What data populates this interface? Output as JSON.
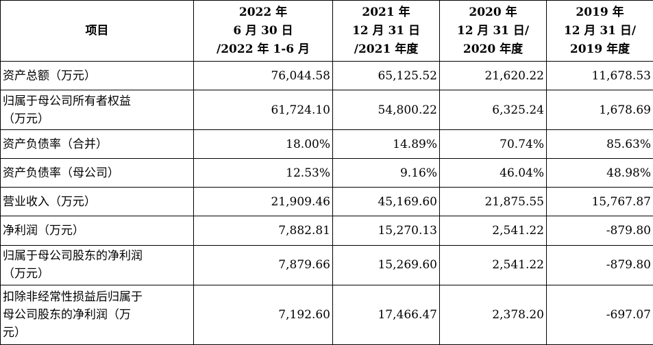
{
  "headers": {
    "item": "项目",
    "col1": [
      "2022 年",
      "6 月 30 日",
      "/2022 年 1-6 月"
    ],
    "col2": [
      "2021 年",
      "12 月 31 日",
      "/2021 年度"
    ],
    "col3": [
      "2020 年",
      "12 月 31 日/",
      "2020 年度"
    ],
    "col4": [
      "2019 年",
      "12 月 31 日/",
      "2019 年度"
    ]
  },
  "rows": [
    {
      "label": [
        "资产总额（万元）"
      ],
      "values": [
        "76,044.58",
        "65,125.52",
        "21,620.22",
        "11,678.53"
      ]
    },
    {
      "label": [
        "归属于母公司所有者权益",
        "（万元）"
      ],
      "values": [
        "61,724.10",
        "54,800.22",
        "6,325.24",
        "1,678.69"
      ]
    },
    {
      "label": [
        "资产负债率（合并）"
      ],
      "values": [
        "18.00%",
        "14.89%",
        "70.74%",
        "85.63%"
      ]
    },
    {
      "label": [
        "资产负债率（母公司）"
      ],
      "values": [
        "12.53%",
        "9.16%",
        "46.04%",
        "48.98%"
      ]
    },
    {
      "label": [
        "营业收入（万元）"
      ],
      "values": [
        "21,909.46",
        "45,169.60",
        "21,875.55",
        "15,767.87"
      ]
    },
    {
      "label": [
        "净利润（万元）"
      ],
      "values": [
        "7,882.81",
        "15,270.13",
        "2,541.22",
        "-879.80"
      ]
    },
    {
      "label": [
        "归属于母公司股东的净利润",
        "（万元）"
      ],
      "values": [
        "7,879.66",
        "15,269.60",
        "2,541.22",
        "-879.80"
      ]
    },
    {
      "label": [
        "扣除非经常性损益后归属于",
        "母公司股东的净利润（万",
        "元）"
      ],
      "values": [
        "7,192.60",
        "17,466.47",
        "2,378.20",
        "-697.07"
      ]
    }
  ]
}
